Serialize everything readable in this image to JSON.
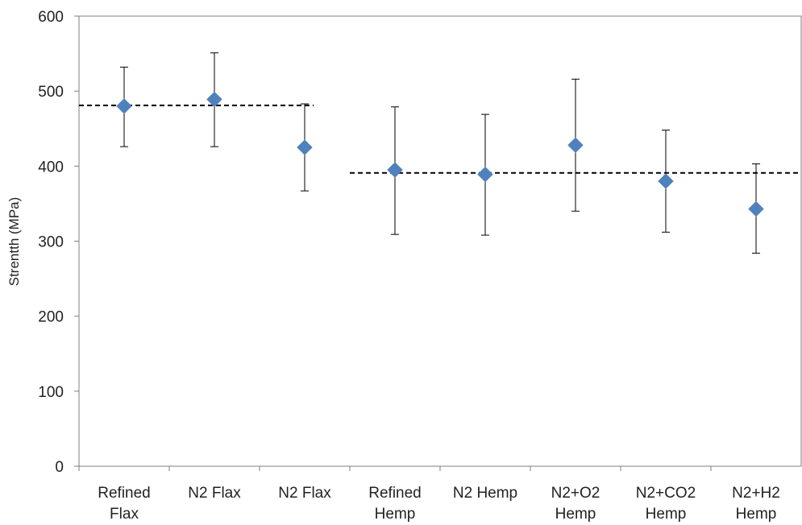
{
  "chart_data": {
    "type": "scatter",
    "ylabel": "Strentth (MPa)",
    "ylim": [
      0,
      600
    ],
    "yticks": [
      "0",
      "100",
      "200",
      "300",
      "400",
      "500",
      "600"
    ],
    "categories": [
      [
        "Refined",
        "Flax"
      ],
      [
        "N2 Flax"
      ],
      [
        "N2 Flax"
      ],
      [
        "Refined",
        "Hemp"
      ],
      [
        "N2 Hemp"
      ],
      [
        "N2+O2",
        "Hemp"
      ],
      [
        "N2+CO2",
        "Hemp"
      ],
      [
        "N2+H2",
        "Hemp"
      ]
    ],
    "series": [
      {
        "values": [
          480,
          489,
          425,
          395,
          389,
          428,
          380,
          343
        ],
        "error_low": [
          426,
          426,
          367,
          309,
          308,
          340,
          312,
          284
        ],
        "error_high": [
          532,
          551,
          483,
          479,
          469,
          516,
          448,
          403
        ]
      }
    ],
    "reference_lines": [
      {
        "y": 481,
        "from_category": 0,
        "to_category": 2
      },
      {
        "y": 391,
        "from_category": 3,
        "to_category": 7
      }
    ],
    "grid": false,
    "marker": "diamond",
    "colors": {
      "marker": "#4f81bd",
      "error_bar": "#000000",
      "reference_line": "#000000",
      "axis": "#7f7f7f"
    }
  }
}
